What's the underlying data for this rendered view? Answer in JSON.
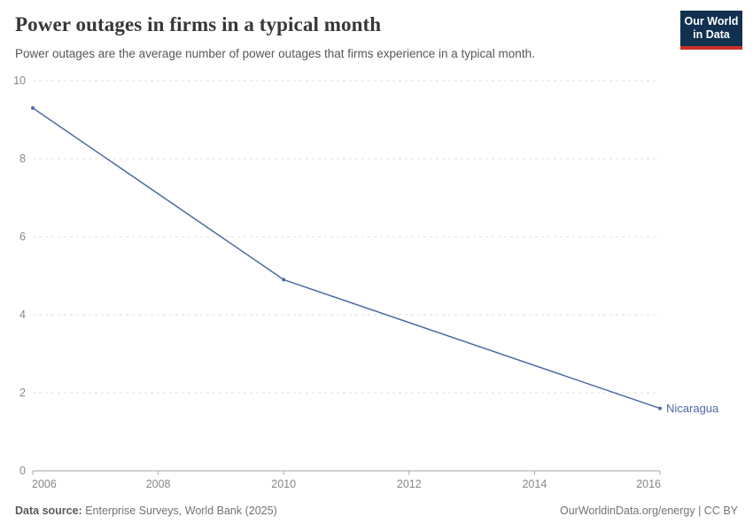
{
  "header": {
    "title": "Power outages in firms in a typical month",
    "subtitle": "Power outages are the average number of power outages that firms experience in a typical month.",
    "logo": {
      "line1": "Our World",
      "line2": "in Data",
      "bg_color": "#12304f",
      "bar_color": "#cb3027"
    }
  },
  "chart_data": {
    "type": "line",
    "title": "Power outages in firms in a typical month",
    "xlabel": "",
    "ylabel": "",
    "xlim": [
      2006,
      2016
    ],
    "ylim": [
      0,
      10
    ],
    "x_ticks": [
      2006,
      2008,
      2010,
      2012,
      2014,
      2016
    ],
    "y_ticks": [
      0,
      2,
      4,
      6,
      8,
      10
    ],
    "grid": "horizontal-dashed",
    "legend_position": "end-of-line-label",
    "series": [
      {
        "name": "Nicaragua",
        "color": "#4c6ba3",
        "x": [
          2006,
          2010,
          2016
        ],
        "values": [
          9.3,
          4.9,
          1.6
        ]
      }
    ],
    "colors": {
      "gridline": "#dedede",
      "axis": "#a5a5a5",
      "tick_label": "#878787"
    }
  },
  "footer": {
    "source_label": "Data source:",
    "source_text": " Enterprise Surveys, World Bank (2025)",
    "right_text": "OurWorldinData.org/energy | CC BY"
  }
}
